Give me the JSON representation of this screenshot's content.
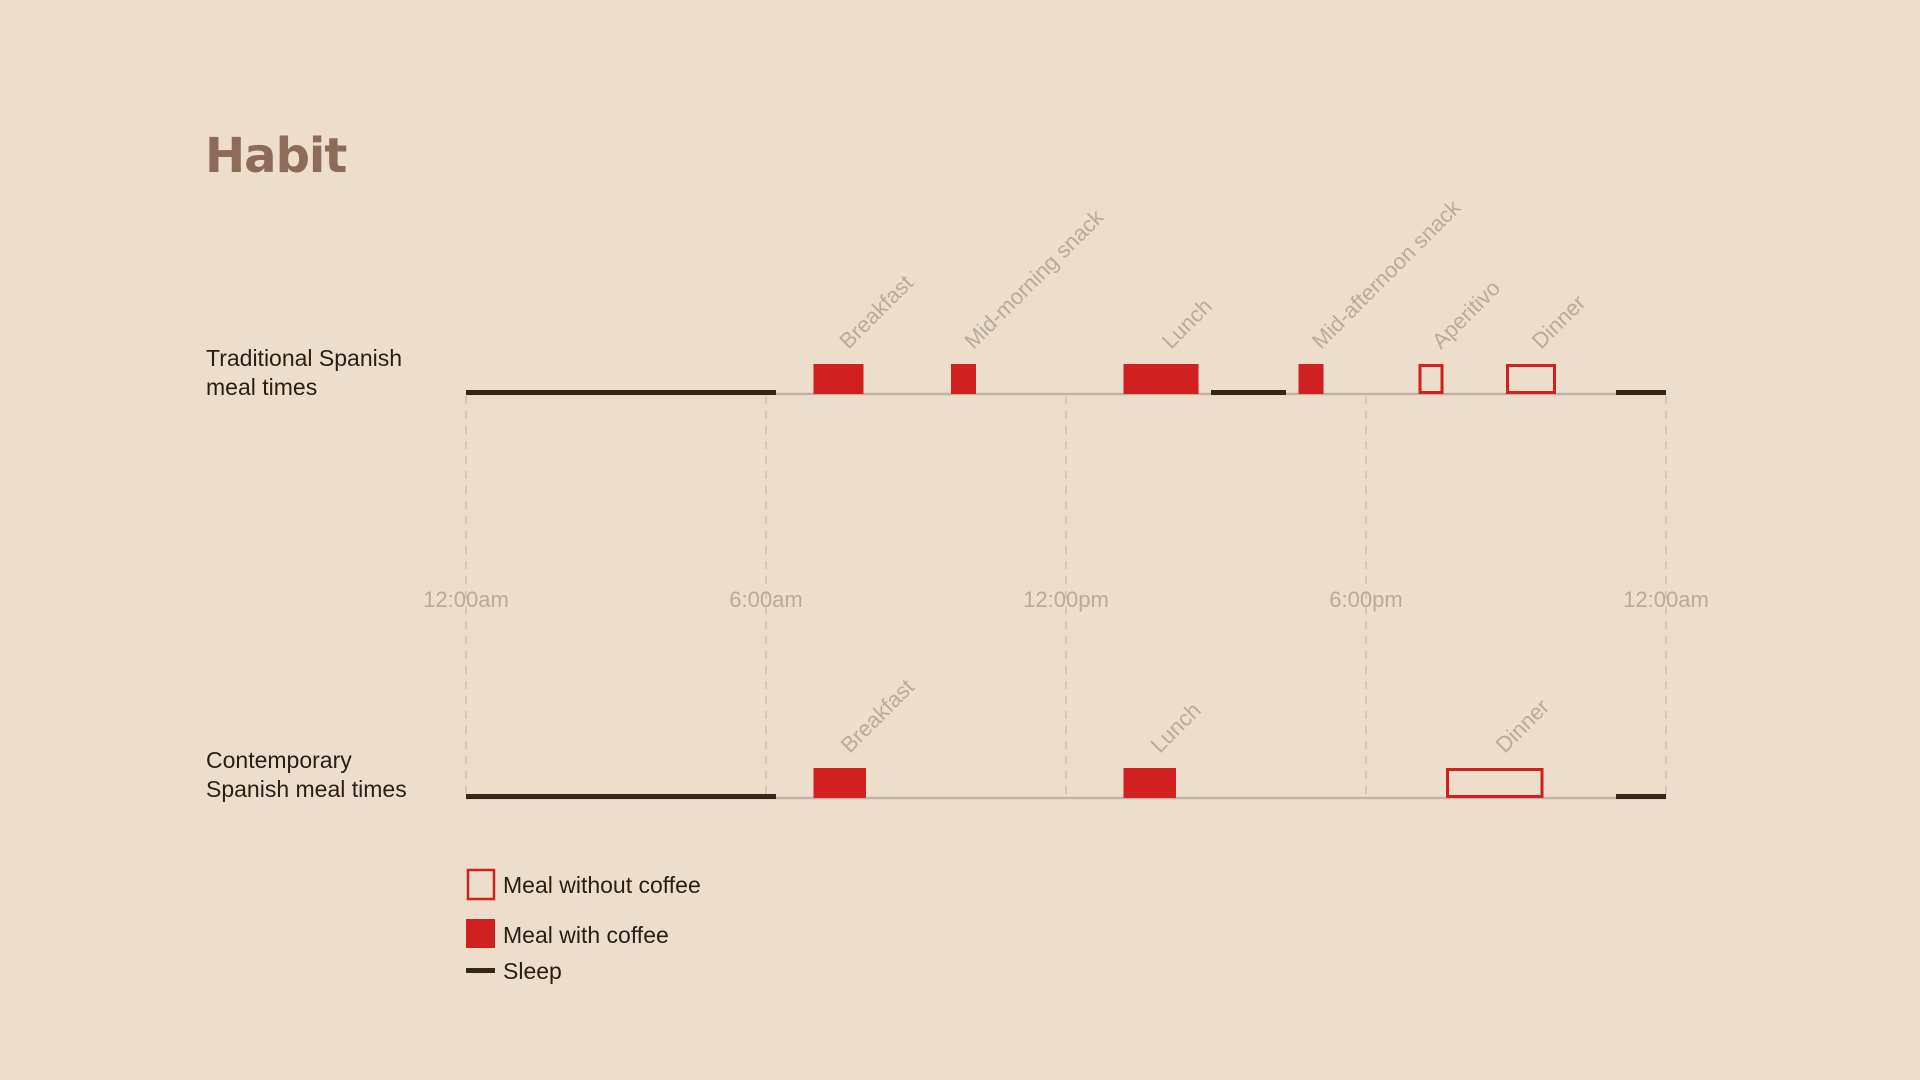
{
  "title": "Habit",
  "colors": {
    "background": "#ecdecb",
    "meal": "#d02020",
    "sleep": "#35261a",
    "baseline": "#c3b2a5",
    "grid": "#cbbcad",
    "tick_label": "#b9aa9c",
    "meal_label": "#bcaa9b",
    "title": "#8a6c58"
  },
  "chart_data": {
    "type": "timeline",
    "x_unit": "hours since 12:00am",
    "xlim": [
      0,
      24
    ],
    "ticks": [
      {
        "value": 0,
        "label": "12:00am"
      },
      {
        "value": 6,
        "label": "6:00am"
      },
      {
        "value": 12,
        "label": "12:00pm"
      },
      {
        "value": 18,
        "label": "6:00pm"
      },
      {
        "value": 24,
        "label": "12:00am"
      }
    ],
    "legend": [
      {
        "kind": "meal_without_coffee",
        "label": "Meal without coffee"
      },
      {
        "kind": "meal_with_coffee",
        "label": "Meal with coffee"
      },
      {
        "kind": "sleep",
        "label": "Sleep"
      }
    ],
    "rows": [
      {
        "label_lines": [
          "Traditional Spanish",
          "meal times"
        ],
        "sleep": [
          [
            0,
            6.2
          ],
          [
            14.9,
            16.4
          ],
          [
            23,
            24
          ]
        ],
        "meals": [
          {
            "label": "Breakfast",
            "start": 6.95,
            "end": 7.95,
            "coffee": true
          },
          {
            "label": "Mid-morning snack",
            "start": 9.7,
            "end": 10.2,
            "coffee": true
          },
          {
            "label": "Lunch",
            "start": 13.15,
            "end": 14.65,
            "coffee": true
          },
          {
            "label": "Mid-afternoon snack",
            "start": 16.65,
            "end": 17.15,
            "coffee": true
          },
          {
            "label": "Aperitivo",
            "start": 19.05,
            "end": 19.55,
            "coffee": false
          },
          {
            "label": "Dinner",
            "start": 20.8,
            "end": 21.8,
            "coffee": false
          }
        ]
      },
      {
        "label_lines": [
          "Contemporary",
          "Spanish meal times"
        ],
        "sleep": [
          [
            0,
            6.2
          ],
          [
            23,
            24
          ]
        ],
        "meals": [
          {
            "label": "Breakfast",
            "start": 6.95,
            "end": 8.0,
            "coffee": true
          },
          {
            "label": "Lunch",
            "start": 13.15,
            "end": 14.2,
            "coffee": true
          },
          {
            "label": "Dinner",
            "start": 19.6,
            "end": 21.55,
            "coffee": false
          }
        ]
      }
    ]
  }
}
